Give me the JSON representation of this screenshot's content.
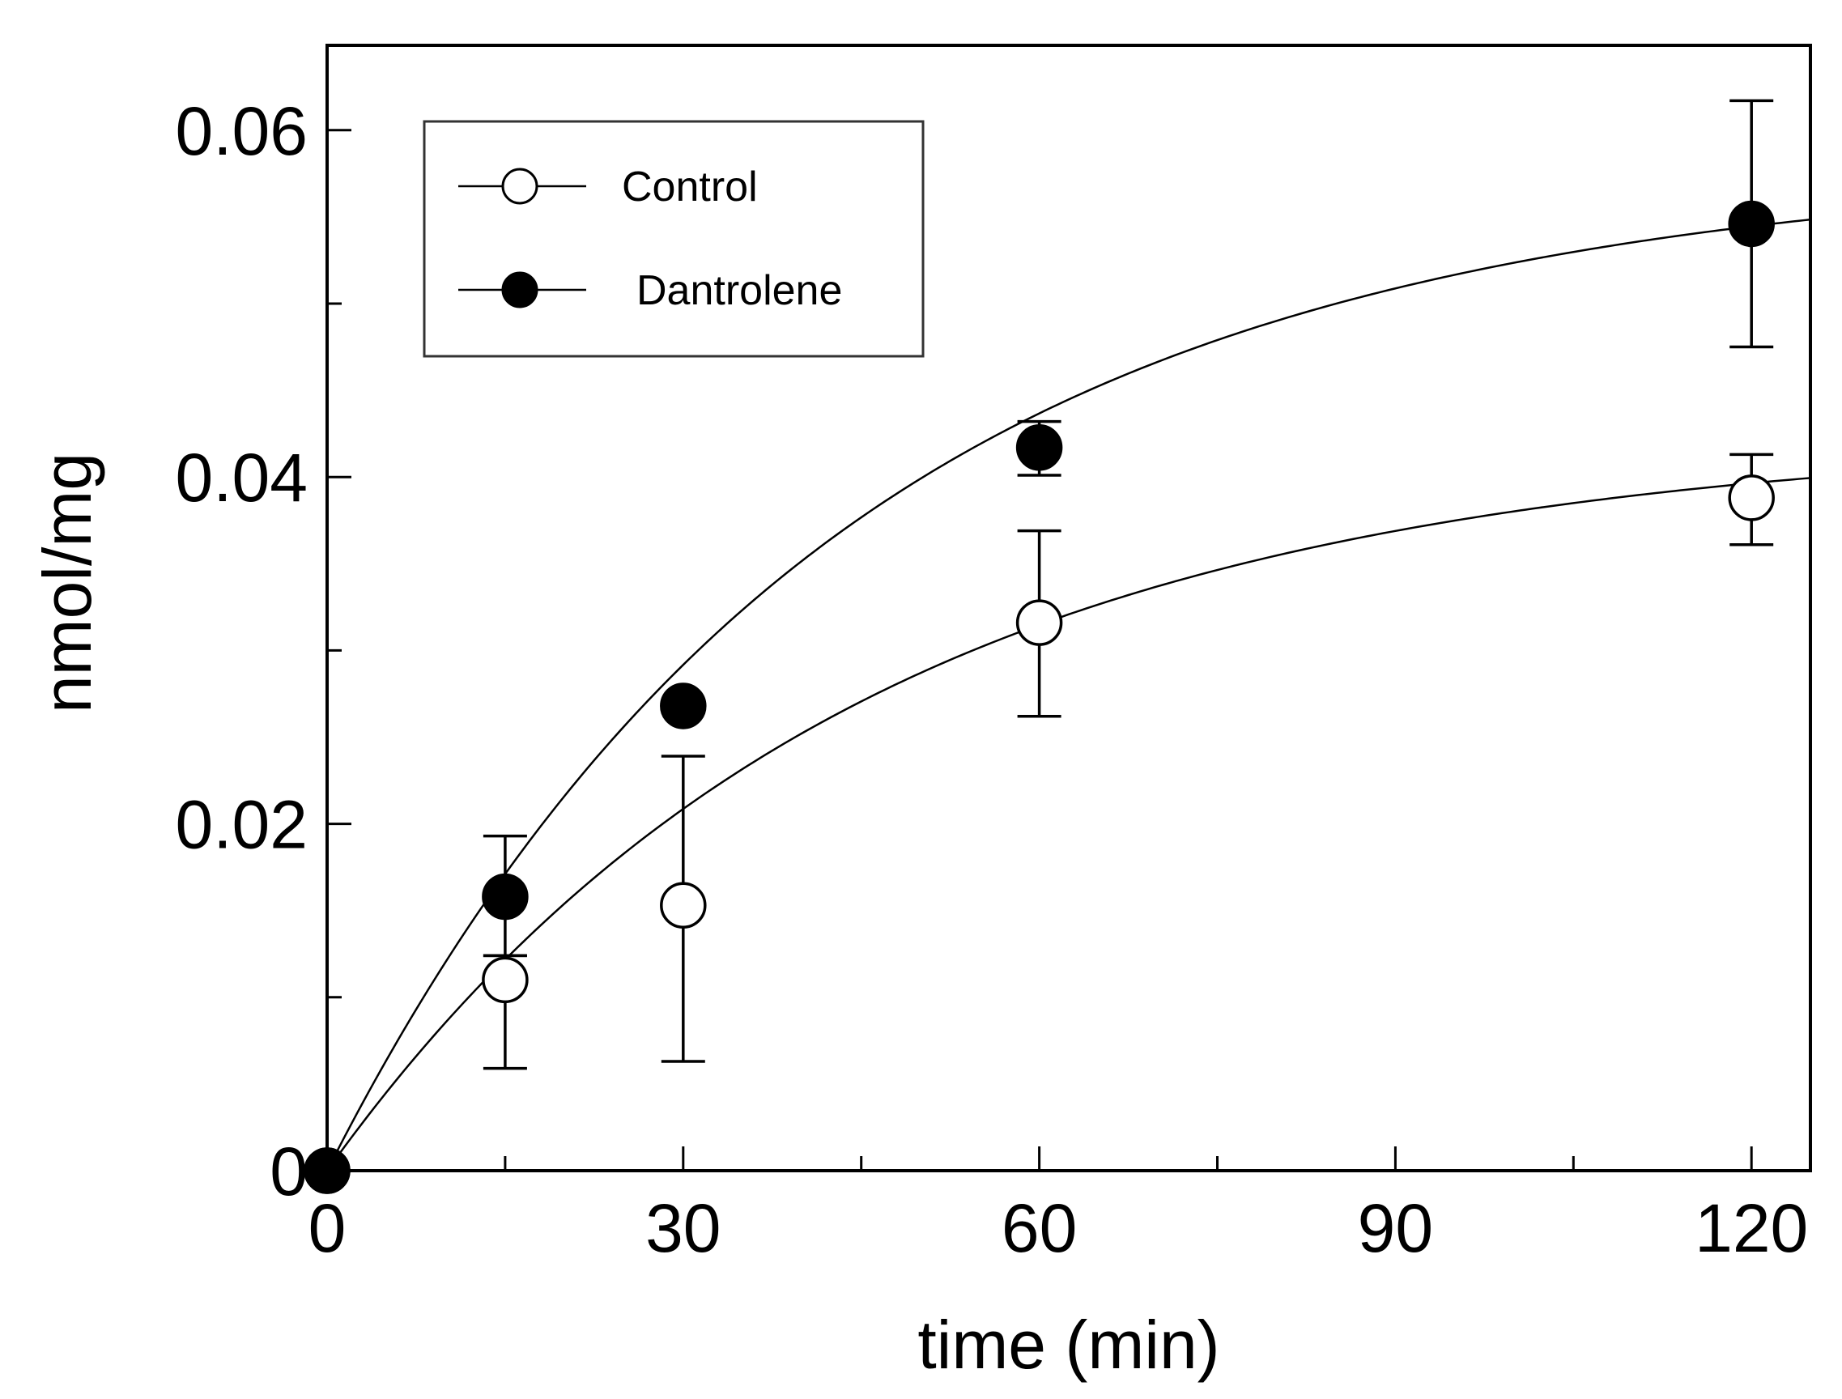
{
  "chart_data": {
    "type": "scatter",
    "title": "",
    "xlabel": "time (min)",
    "ylabel": "nmol/mg",
    "xlim": [
      0,
      125
    ],
    "ylim": [
      0,
      0.065
    ],
    "x_major_ticks": [
      0,
      30,
      60,
      90,
      120
    ],
    "x_tick_labels": [
      "0",
      "30",
      "60",
      "90",
      "120"
    ],
    "x_minor_ticks": [
      15,
      45,
      75,
      105
    ],
    "y_major_ticks": [
      0,
      0.02,
      0.04,
      0.06
    ],
    "y_tick_labels": [
      "0",
      "0.02",
      "0.04",
      "0.06"
    ],
    "y_minor_ticks": [
      0.01,
      0.03,
      0.05
    ],
    "grid": false,
    "legend_position": "top-left",
    "series": [
      {
        "name": "Control",
        "marker": "open-circle",
        "x": [
          0,
          15,
          30,
          60,
          120
        ],
        "y": [
          0,
          0.011,
          0.0153,
          0.0316,
          0.0388
        ],
        "err_low": [
          0,
          0.0059,
          0.0063,
          0.0262,
          0.0361
        ],
        "err_high": [
          0,
          0.0124,
          0.0239,
          0.0369,
          0.0413
        ],
        "fit": {
          "model": "a*(1-exp(-b*x))",
          "a": 0.0425,
          "b": 0.0225
        }
      },
      {
        "name": "Dantrolene",
        "marker": "filled-circle",
        "x": [
          0,
          15,
          30,
          60,
          120
        ],
        "y": [
          0,
          0.0158,
          0.0268,
          0.0417,
          0.0546
        ],
        "err_low": [
          0,
          0.0124,
          0.0268,
          0.0401,
          0.0475
        ],
        "err_high": [
          0,
          0.0193,
          0.0268,
          0.0432,
          0.0617
        ],
        "fit": {
          "model": "a*(1-exp(-b*x))",
          "a": 0.058,
          "b": 0.0233
        }
      }
    ]
  }
}
